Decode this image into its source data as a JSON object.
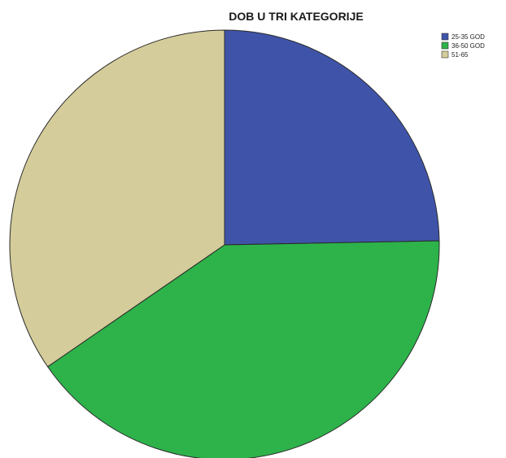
{
  "chart_data": {
    "type": "pie",
    "title": "DOB U TRI KATEGORIJE",
    "slices": [
      {
        "label": "25-35 GOD",
        "value": 24.7,
        "color": "#3f54a9"
      },
      {
        "label": "36-50 GOD",
        "value": 40.7,
        "color": "#2db34a"
      },
      {
        "label": "51-65",
        "value": 34.6,
        "color": "#d4cc9a"
      }
    ],
    "legend_position": "top-right"
  }
}
